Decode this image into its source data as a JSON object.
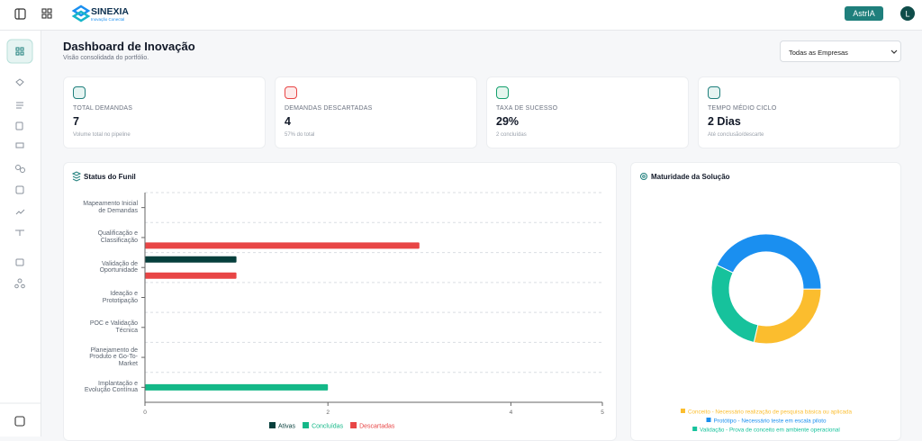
{
  "topbar": {
    "brand": "SINEXIA",
    "brand_tagline": "Inovação Conectal",
    "assistant_button": "AstrIA",
    "avatar": "L"
  },
  "header": {
    "title": "Dashboard de Inovação",
    "subtitle": "Visão consolidada do portfólio.",
    "company_filter": "Todas as Empresas"
  },
  "kpis": [
    {
      "label": "TOTAL DEMANDAS",
      "value": "7",
      "note": "Volume total no pipeline"
    },
    {
      "label": "DEMANDAS DESCARTADAS",
      "value": "4",
      "note": "57% do total"
    },
    {
      "label": "TAXA DE SUCESSO",
      "value": "29%",
      "note": "2 concluídas"
    },
    {
      "label": "TEMPO MÉDIO CICLO",
      "value": "2 Dias",
      "note": "Até conclusão/descarte"
    }
  ],
  "funnel_chart": {
    "type": "bar",
    "orientation": "horizontal",
    "title": "Status do Funil",
    "categories": [
      "Mapeamento Inicial de Demandas",
      "Qualificação e Classificação",
      "Validação de Oportunidade",
      "Ideação e Prototipação",
      "POC e Validação Técnica",
      "Planejamento de Produto e Go-To-Market",
      "Implantação e Evolução Contínua"
    ],
    "series": [
      {
        "name": "Ativas",
        "color": "#063f3c",
        "values": [
          0,
          0,
          1,
          0,
          0,
          0,
          0
        ]
      },
      {
        "name": "Concluídas",
        "color": "#14b888",
        "values": [
          0,
          0,
          0,
          0,
          0,
          0,
          2
        ]
      },
      {
        "name": "Descartadas",
        "color": "#e84545",
        "values": [
          0,
          3,
          1,
          0,
          0,
          0,
          0
        ]
      }
    ],
    "xlim": [
      0,
      5
    ],
    "xticks": [
      0,
      2,
      4,
      5
    ],
    "grid": true,
    "legend": "bottom"
  },
  "maturity_chart": {
    "type": "pie",
    "donut": true,
    "title": "Maturidade da Solução",
    "categories": [
      "Conceito - Necessário realização de pesquisa básica ou aplicada",
      "Protótipo - Necessário teste em escala piloto",
      "Validação - Prova de conceito em ambiente operacional"
    ],
    "values": [
      2,
      3,
      2
    ],
    "colors": [
      "#fbbd2e",
      "#1a8ff0",
      "#16c29c"
    ],
    "legend": "bottom"
  }
}
